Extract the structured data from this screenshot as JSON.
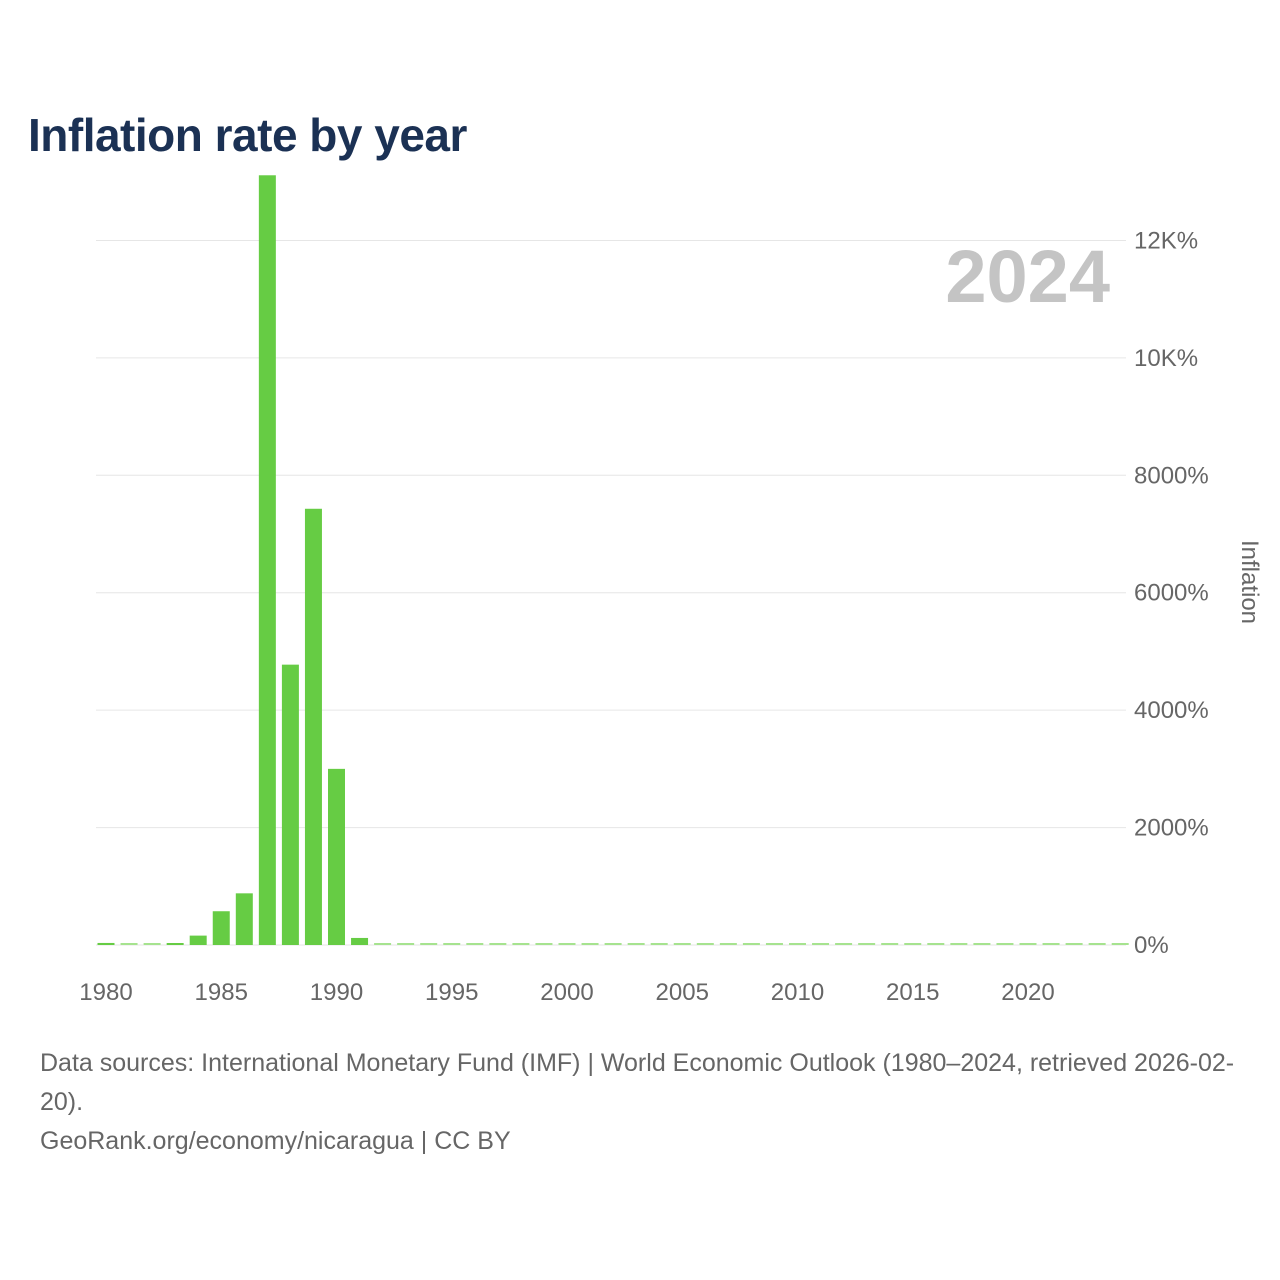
{
  "title": "Inflation rate by year",
  "colors": {
    "bar": "#66cc44",
    "bar_faint": "#a6e38f",
    "grid": "#e6e6e6",
    "year_watermark": "#c4c4c4",
    "title": "#1b3154",
    "text": "#666666"
  },
  "chart_data": {
    "type": "bar",
    "title": "Inflation rate by year",
    "xlabel": "",
    "ylabel": "Inflation",
    "ylim": [
      0,
      13200
    ],
    "watermark_year": "2024",
    "y_ticks": [
      {
        "value": 0,
        "label": "0%"
      },
      {
        "value": 2000,
        "label": "2000%"
      },
      {
        "value": 4000,
        "label": "4000%"
      },
      {
        "value": 6000,
        "label": "6000%"
      },
      {
        "value": 8000,
        "label": "8000%"
      },
      {
        "value": 10000,
        "label": "10K%"
      },
      {
        "value": 12000,
        "label": "12K%"
      }
    ],
    "x_ticks": [
      1980,
      1985,
      1990,
      1995,
      2000,
      2005,
      2010,
      2015,
      2020
    ],
    "categories": [
      1980,
      1981,
      1982,
      1983,
      1984,
      1985,
      1986,
      1987,
      1988,
      1989,
      1990,
      1991,
      1992,
      1993,
      1994,
      1995,
      1996,
      1997,
      1998,
      1999,
      2000,
      2001,
      2002,
      2003,
      2004,
      2005,
      2006,
      2007,
      2008,
      2009,
      2010,
      2011,
      2012,
      2013,
      2014,
      2015,
      2016,
      2017,
      2018,
      2019,
      2020,
      2021,
      2022,
      2023,
      2024
    ],
    "values": [
      35,
      24,
      25,
      31,
      160,
      575,
      880,
      13110,
      4775,
      7430,
      3000,
      120,
      20,
      10,
      8,
      12,
      12,
      9,
      13,
      11,
      12,
      7,
      4,
      6,
      8,
      10,
      9,
      11,
      20,
      4,
      5,
      8,
      7,
      7,
      6,
      4,
      4,
      4,
      5,
      5,
      3,
      5,
      10,
      8,
      5
    ]
  },
  "footer": {
    "sources": "Data sources: International Monetary Fund (IMF) | World Economic Outlook (1980–2024, retrieved 2026-02-20).",
    "credit": "GeoRank.org/economy/nicaragua | CC BY"
  }
}
